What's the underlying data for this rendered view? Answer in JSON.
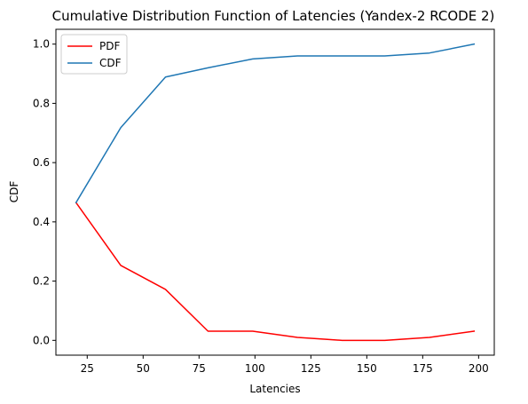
{
  "chart_data": {
    "type": "line",
    "title": "Cumulative Distribution Function of Latencies (Yandex-2 RCODE 2)",
    "xlabel": "Latencies",
    "ylabel": "CDF",
    "xlim": [
      11,
      207
    ],
    "ylim": [
      -0.05,
      1.05
    ],
    "xticks": [
      25,
      50,
      75,
      100,
      125,
      150,
      175,
      200
    ],
    "yticks": [
      0.0,
      0.2,
      0.4,
      0.6,
      0.8,
      1.0
    ],
    "grid": false,
    "legend": "top-left",
    "series": [
      {
        "name": "PDF",
        "color": "#ff0000",
        "x": [
          20,
          40,
          60,
          79,
          99,
          119,
          139,
          158,
          178,
          198
        ],
        "y": [
          0.465,
          0.253,
          0.172,
          0.031,
          0.031,
          0.01,
          0.0,
          0.0,
          0.01,
          0.031
        ]
      },
      {
        "name": "CDF",
        "color": "#1f77b4",
        "x": [
          20,
          40,
          60,
          79,
          99,
          119,
          139,
          158,
          178,
          198
        ],
        "y": [
          0.465,
          0.718,
          0.889,
          0.92,
          0.95,
          0.96,
          0.96,
          0.96,
          0.97,
          1.0
        ]
      }
    ]
  }
}
